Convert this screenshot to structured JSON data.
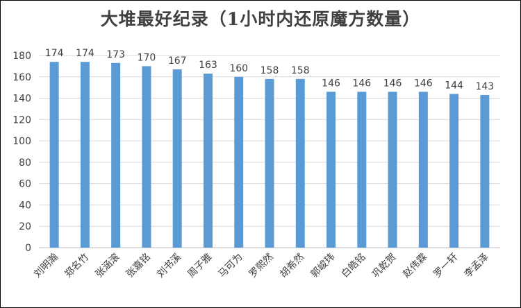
{
  "chart_data": {
    "type": "bar",
    "title": "大堆最好纪录（1小时内还原魔方数量）",
    "xlabel": "",
    "ylabel": "",
    "ylim": [
      0,
      180
    ],
    "yticks": [
      0,
      20,
      40,
      60,
      80,
      100,
      120,
      140,
      160,
      180
    ],
    "grid": true,
    "legend": "none",
    "bar_color": "#5b9bd5",
    "categories": [
      "刘明瀚",
      "郑名竹",
      "张涵滚",
      "张嘉铭",
      "刘书溪",
      "周子雅",
      "马可为",
      "罗熙然",
      "胡希然",
      "郭峻玮",
      "白皓铭",
      "巩乾贺",
      "赵伟霖",
      "罗一轩",
      "李孟泽"
    ],
    "values": [
      174,
      174,
      173,
      170,
      167,
      163,
      160,
      158,
      158,
      146,
      146,
      146,
      146,
      144,
      143
    ]
  }
}
